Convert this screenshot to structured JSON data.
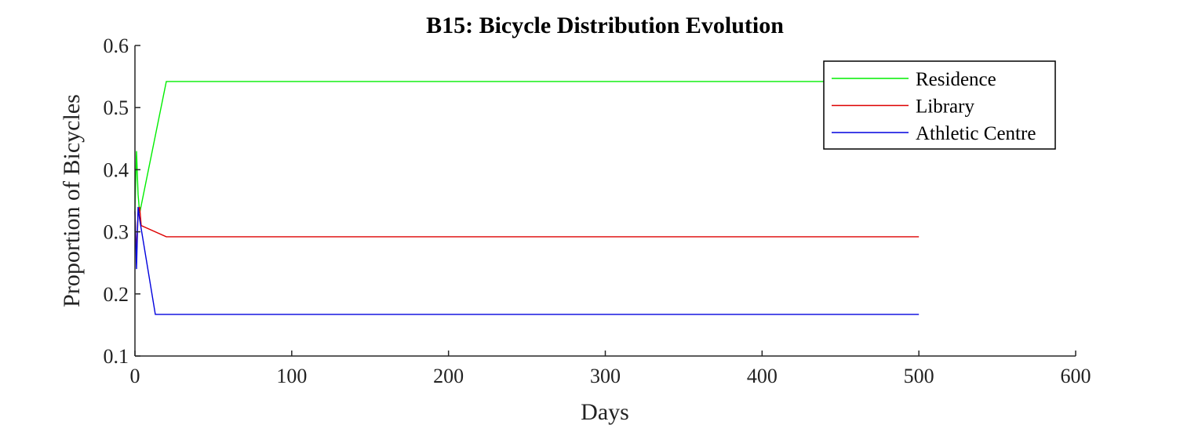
{
  "chart_data": {
    "type": "line",
    "title": "B15: Bicycle Distribution Evolution",
    "xlabel": "Days",
    "ylabel": "Proportion of Bicycles",
    "xlim": [
      0,
      600
    ],
    "ylim": [
      0.1,
      0.6
    ],
    "xticks": [
      "0",
      "100",
      "200",
      "300",
      "400",
      "500",
      "600"
    ],
    "yticks": [
      "0.1",
      "0.2",
      "0.3",
      "0.4",
      "0.5",
      "0.6"
    ],
    "grid": false,
    "legend_position": "top-right",
    "series": [
      {
        "name": "Residence",
        "color": "#00ee00",
        "points": [
          [
            0,
            0.333
          ],
          [
            1,
            0.43
          ],
          [
            2,
            0.36
          ],
          [
            3,
            0.33
          ],
          [
            20,
            0.542
          ],
          [
            500,
            0.542
          ]
        ]
      },
      {
        "name": "Library",
        "color": "#dd0000",
        "points": [
          [
            0,
            0.333
          ],
          [
            1,
            0.26
          ],
          [
            2,
            0.33
          ],
          [
            3,
            0.34
          ],
          [
            4,
            0.31
          ],
          [
            20,
            0.292
          ],
          [
            500,
            0.292
          ]
        ]
      },
      {
        "name": "Athletic Centre",
        "color": "#0000dd",
        "points": [
          [
            0,
            0.333
          ],
          [
            1,
            0.24
          ],
          [
            2,
            0.34
          ],
          [
            3,
            0.32
          ],
          [
            13,
            0.167
          ],
          [
            500,
            0.167
          ]
        ]
      }
    ]
  }
}
